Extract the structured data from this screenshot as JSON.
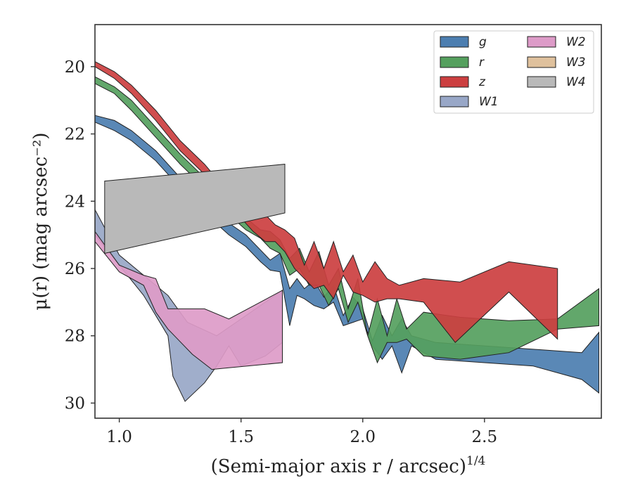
{
  "chart_data": {
    "type": "area",
    "xlabel": "(Semi-major axis r / arcsec)",
    "xlabel_exponent": "1/4",
    "ylabel": "μ(r) (mag arcsec⁻²)",
    "xlim": [
      0.9,
      2.98
    ],
    "ylim": [
      30.45,
      18.75
    ],
    "y_inverted": true,
    "x_ticks": [
      "1.0",
      "1.5",
      "2.0",
      "2.5"
    ],
    "y_ticks": [
      "20",
      "22",
      "24",
      "26",
      "28",
      "30"
    ],
    "legend": {
      "placement": "top-right",
      "columns": 2
    },
    "grid": false,
    "series": [
      {
        "name": "g",
        "color": "#4c7eb0",
        "upper": [
          [
            0.9,
            21.45
          ],
          [
            0.98,
            21.6
          ],
          [
            1.05,
            21.9
          ],
          [
            1.15,
            22.5
          ],
          [
            1.25,
            23.3
          ],
          [
            1.35,
            24.0
          ],
          [
            1.45,
            24.65
          ],
          [
            1.52,
            25.0
          ],
          [
            1.58,
            25.45
          ],
          [
            1.62,
            25.75
          ],
          [
            1.66,
            25.55
          ],
          [
            1.7,
            26.6
          ],
          [
            1.73,
            26.3
          ],
          [
            1.76,
            26.6
          ],
          [
            1.8,
            26.35
          ],
          [
            1.84,
            26.85
          ],
          [
            1.88,
            26.5
          ],
          [
            1.92,
            27.4
          ],
          [
            1.96,
            26.85
          ],
          [
            2.0,
            27.2
          ],
          [
            2.04,
            28.15
          ],
          [
            2.08,
            27.4
          ],
          [
            2.12,
            28.0
          ],
          [
            2.16,
            27.5
          ],
          [
            2.2,
            28.0
          ],
          [
            2.3,
            28.2
          ],
          [
            2.5,
            28.3
          ],
          [
            2.7,
            28.4
          ],
          [
            2.9,
            28.5
          ],
          [
            2.97,
            27.9
          ]
        ],
        "lower": [
          [
            2.97,
            29.7
          ],
          [
            2.9,
            29.3
          ],
          [
            2.7,
            28.9
          ],
          [
            2.5,
            28.8
          ],
          [
            2.3,
            28.7
          ],
          [
            2.2,
            28.3
          ],
          [
            2.16,
            29.1
          ],
          [
            2.12,
            28.3
          ],
          [
            2.08,
            28.7
          ],
          [
            2.04,
            28.3
          ],
          [
            2.0,
            27.5
          ],
          [
            1.96,
            27.6
          ],
          [
            1.92,
            27.7
          ],
          [
            1.88,
            27.0
          ],
          [
            1.84,
            27.2
          ],
          [
            1.8,
            27.1
          ],
          [
            1.76,
            26.9
          ],
          [
            1.73,
            26.8
          ],
          [
            1.7,
            27.7
          ],
          [
            1.66,
            26.1
          ],
          [
            1.62,
            26.05
          ],
          [
            1.58,
            25.8
          ],
          [
            1.52,
            25.35
          ],
          [
            1.45,
            25.0
          ],
          [
            1.35,
            24.35
          ],
          [
            1.25,
            23.6
          ],
          [
            1.15,
            22.8
          ],
          [
            1.05,
            22.2
          ],
          [
            0.98,
            21.9
          ],
          [
            0.9,
            21.65
          ]
        ]
      },
      {
        "name": "r",
        "color": "#55a05e",
        "upper": [
          [
            0.9,
            20.3
          ],
          [
            0.98,
            20.6
          ],
          [
            1.05,
            21.0
          ],
          [
            1.15,
            21.8
          ],
          [
            1.25,
            22.6
          ],
          [
            1.35,
            23.3
          ],
          [
            1.45,
            24.05
          ],
          [
            1.52,
            24.5
          ],
          [
            1.58,
            24.85
          ],
          [
            1.62,
            24.9
          ],
          [
            1.66,
            25.15
          ],
          [
            1.7,
            25.7
          ],
          [
            1.74,
            25.4
          ],
          [
            1.78,
            26.1
          ],
          [
            1.82,
            25.5
          ],
          [
            1.86,
            26.5
          ],
          [
            1.9,
            26.0
          ],
          [
            1.94,
            27.2
          ],
          [
            1.98,
            26.3
          ],
          [
            2.02,
            28.0
          ],
          [
            2.06,
            26.9
          ],
          [
            2.1,
            28.0
          ],
          [
            2.14,
            26.9
          ],
          [
            2.18,
            27.8
          ],
          [
            2.25,
            27.3
          ],
          [
            2.4,
            27.45
          ],
          [
            2.6,
            27.55
          ],
          [
            2.8,
            27.5
          ],
          [
            2.97,
            26.6
          ]
        ],
        "lower": [
          [
            2.97,
            27.7
          ],
          [
            2.8,
            27.8
          ],
          [
            2.6,
            28.5
          ],
          [
            2.4,
            28.7
          ],
          [
            2.25,
            28.6
          ],
          [
            2.18,
            28.1
          ],
          [
            2.14,
            28.2
          ],
          [
            2.1,
            28.2
          ],
          [
            2.06,
            28.8
          ],
          [
            2.02,
            28.0
          ],
          [
            1.98,
            27.0
          ],
          [
            1.94,
            27.6
          ],
          [
            1.9,
            26.6
          ],
          [
            1.86,
            27.1
          ],
          [
            1.82,
            26.5
          ],
          [
            1.78,
            26.5
          ],
          [
            1.74,
            26.0
          ],
          [
            1.7,
            26.2
          ],
          [
            1.66,
            25.55
          ],
          [
            1.62,
            25.4
          ],
          [
            1.58,
            25.1
          ],
          [
            1.52,
            24.85
          ],
          [
            1.45,
            24.4
          ],
          [
            1.35,
            23.6
          ],
          [
            1.25,
            22.9
          ],
          [
            1.15,
            22.1
          ],
          [
            1.05,
            21.3
          ],
          [
            0.98,
            20.8
          ],
          [
            0.9,
            20.5
          ]
        ]
      },
      {
        "name": "z",
        "color": "#cc3f40",
        "upper": [
          [
            0.9,
            19.85
          ],
          [
            0.98,
            20.15
          ],
          [
            1.05,
            20.55
          ],
          [
            1.15,
            21.3
          ],
          [
            1.25,
            22.2
          ],
          [
            1.35,
            22.9
          ],
          [
            1.45,
            23.75
          ],
          [
            1.5,
            23.8
          ],
          [
            1.55,
            23.95
          ],
          [
            1.6,
            24.4
          ],
          [
            1.64,
            24.7
          ],
          [
            1.68,
            24.85
          ],
          [
            1.72,
            25.1
          ],
          [
            1.76,
            25.9
          ],
          [
            1.8,
            25.2
          ],
          [
            1.84,
            26.0
          ],
          [
            1.88,
            25.2
          ],
          [
            1.92,
            26.1
          ],
          [
            1.96,
            25.6
          ],
          [
            2.0,
            26.4
          ],
          [
            2.05,
            25.8
          ],
          [
            2.1,
            26.3
          ],
          [
            2.15,
            26.5
          ],
          [
            2.25,
            26.3
          ],
          [
            2.4,
            26.4
          ],
          [
            2.6,
            25.8
          ],
          [
            2.8,
            26.0
          ]
        ],
        "lower": [
          [
            2.8,
            28.1
          ],
          [
            2.6,
            26.7
          ],
          [
            2.38,
            28.2
          ],
          [
            2.25,
            27.0
          ],
          [
            2.15,
            26.9
          ],
          [
            2.1,
            26.9
          ],
          [
            2.05,
            27.0
          ],
          [
            2.0,
            26.8
          ],
          [
            1.96,
            26.7
          ],
          [
            1.92,
            26.2
          ],
          [
            1.88,
            26.9
          ],
          [
            1.84,
            26.5
          ],
          [
            1.8,
            26.6
          ],
          [
            1.76,
            26.3
          ],
          [
            1.72,
            26.0
          ],
          [
            1.68,
            25.5
          ],
          [
            1.64,
            25.2
          ],
          [
            1.6,
            25.2
          ],
          [
            1.55,
            24.9
          ],
          [
            1.5,
            24.5
          ],
          [
            1.45,
            24.1
          ],
          [
            1.35,
            23.2
          ],
          [
            1.25,
            22.5
          ],
          [
            1.15,
            21.6
          ],
          [
            1.05,
            20.8
          ],
          [
            0.98,
            20.35
          ],
          [
            0.9,
            20.0
          ]
        ]
      },
      {
        "name": "W1",
        "color": "#98a7c7",
        "upper": [
          [
            0.9,
            24.25
          ],
          [
            1.0,
            25.6
          ],
          [
            1.1,
            26.2
          ],
          [
            1.2,
            26.8
          ],
          [
            1.28,
            27.6
          ],
          [
            1.4,
            28.0
          ],
          [
            1.5,
            27.5
          ],
          [
            1.6,
            27.0
          ],
          [
            1.67,
            26.65
          ]
        ],
        "lower": [
          [
            1.67,
            28.2
          ],
          [
            1.6,
            28.6
          ],
          [
            1.5,
            28.9
          ],
          [
            1.45,
            28.3
          ],
          [
            1.4,
            28.9
          ],
          [
            1.35,
            29.4
          ],
          [
            1.27,
            29.95
          ],
          [
            1.22,
            29.2
          ],
          [
            1.2,
            28.0
          ],
          [
            1.1,
            26.8
          ],
          [
            1.0,
            25.9
          ],
          [
            0.9,
            25.0
          ]
        ]
      },
      {
        "name": "W2",
        "color": "#dd9bc8",
        "upper": [
          [
            0.9,
            24.9
          ],
          [
            1.0,
            25.9
          ],
          [
            1.1,
            26.2
          ],
          [
            1.15,
            26.3
          ],
          [
            1.2,
            27.2
          ],
          [
            1.35,
            27.2
          ],
          [
            1.45,
            27.5
          ],
          [
            1.67,
            26.65
          ]
        ],
        "lower": [
          [
            1.67,
            28.8
          ],
          [
            1.45,
            28.95
          ],
          [
            1.38,
            29.0
          ],
          [
            1.3,
            28.55
          ],
          [
            1.2,
            27.8
          ],
          [
            1.15,
            27.3
          ],
          [
            1.1,
            26.5
          ],
          [
            1.0,
            26.1
          ],
          [
            0.9,
            25.2
          ]
        ]
      },
      {
        "name": "W3",
        "color": "#dfc19d",
        "upper": [],
        "lower": []
      },
      {
        "name": "W4",
        "color": "#b9b9b9",
        "upper": [
          [
            0.94,
            23.4
          ],
          [
            1.68,
            22.9
          ]
        ],
        "lower": [
          [
            1.68,
            24.35
          ],
          [
            0.94,
            25.55
          ]
        ]
      }
    ]
  }
}
